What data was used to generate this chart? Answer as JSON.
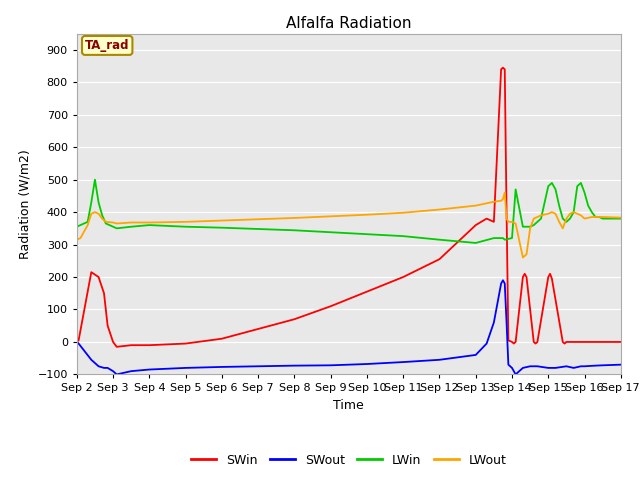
{
  "title": "Alfalfa Radiation",
  "xlabel": "Time",
  "ylabel": "Radiation (W/m2)",
  "ylim": [
    -100,
    950
  ],
  "yticks": [
    -100,
    0,
    100,
    200,
    300,
    400,
    500,
    600,
    700,
    800,
    900
  ],
  "bg_color": "#e8e8e8",
  "annotation_text": "TA_rad",
  "annotation_bg": "#ffffcc",
  "annotation_border": "#aa8800",
  "annotation_text_color": "#8b0000",
  "series": {
    "SWin": {
      "color": "#ff0000",
      "x": [
        2.0,
        2.05,
        2.4,
        2.6,
        2.75,
        2.85,
        3.0,
        3.1,
        3.5,
        4.0,
        5.0,
        6.0,
        7.0,
        8.0,
        9.0,
        10.0,
        11.0,
        12.0,
        13.0,
        13.3,
        13.5,
        13.7,
        13.75,
        13.8,
        13.85,
        13.9,
        14.0,
        14.05,
        14.1,
        14.3,
        14.35,
        14.4,
        14.6,
        14.65,
        14.7,
        15.0,
        15.05,
        15.1,
        15.4,
        15.45,
        15.5,
        15.9,
        16.5,
        17.0
      ],
      "y": [
        0,
        5,
        215,
        200,
        150,
        50,
        0,
        -15,
        -10,
        -10,
        -5,
        10,
        40,
        70,
        110,
        155,
        200,
        255,
        360,
        380,
        370,
        840,
        845,
        840,
        400,
        5,
        0,
        -5,
        0,
        200,
        210,
        200,
        0,
        -5,
        0,
        200,
        210,
        195,
        0,
        -5,
        0,
        0,
        0,
        0
      ]
    },
    "SWout": {
      "color": "#0000ff",
      "x": [
        2.0,
        2.05,
        2.4,
        2.6,
        2.75,
        2.85,
        3.0,
        3.1,
        3.5,
        4.0,
        5.0,
        6.0,
        7.0,
        8.0,
        9.0,
        10.0,
        11.0,
        12.0,
        13.0,
        13.3,
        13.5,
        13.7,
        13.75,
        13.8,
        13.85,
        13.9,
        14.0,
        14.1,
        14.3,
        14.5,
        14.7,
        15.0,
        15.2,
        15.5,
        15.7,
        15.9,
        16.0,
        16.3,
        16.5,
        17.0
      ],
      "y": [
        0,
        -5,
        -55,
        -75,
        -80,
        -80,
        -90,
        -100,
        -90,
        -85,
        -80,
        -77,
        -75,
        -73,
        -72,
        -68,
        -62,
        -55,
        -40,
        -5,
        60,
        180,
        190,
        180,
        60,
        -70,
        -80,
        -100,
        -80,
        -75,
        -75,
        -80,
        -80,
        -75,
        -80,
        -75,
        -75,
        -73,
        -72,
        -70
      ]
    },
    "LWin": {
      "color": "#00cc00",
      "x": [
        2.0,
        2.1,
        2.3,
        2.4,
        2.5,
        2.6,
        2.7,
        2.8,
        3.0,
        3.1,
        3.5,
        4.0,
        5.0,
        6.0,
        7.0,
        8.0,
        9.0,
        10.0,
        11.0,
        12.0,
        13.0,
        13.5,
        13.7,
        13.75,
        13.8,
        14.0,
        14.1,
        14.3,
        14.4,
        14.5,
        14.6,
        14.7,
        14.8,
        15.0,
        15.1,
        15.2,
        15.3,
        15.4,
        15.5,
        15.6,
        15.7,
        15.8,
        15.9,
        16.0,
        16.1,
        16.2,
        16.3,
        16.4,
        16.5,
        16.7,
        17.0
      ],
      "y": [
        355,
        360,
        370,
        430,
        500,
        430,
        390,
        365,
        355,
        350,
        355,
        360,
        355,
        352,
        348,
        344,
        338,
        332,
        326,
        315,
        305,
        320,
        320,
        320,
        315,
        320,
        470,
        355,
        355,
        355,
        360,
        370,
        380,
        480,
        490,
        470,
        420,
        380,
        370,
        380,
        400,
        480,
        490,
        460,
        420,
        400,
        385,
        385,
        380,
        380,
        380
      ]
    },
    "LWout": {
      "color": "#ffa500",
      "x": [
        2.0,
        2.1,
        2.3,
        2.4,
        2.5,
        2.6,
        2.7,
        2.8,
        3.0,
        3.1,
        3.5,
        4.0,
        5.0,
        6.0,
        7.0,
        8.0,
        9.0,
        10.0,
        11.0,
        12.0,
        13.0,
        13.5,
        13.7,
        13.75,
        13.8,
        13.85,
        13.9,
        14.0,
        14.1,
        14.3,
        14.4,
        14.5,
        14.6,
        14.7,
        14.8,
        15.0,
        15.1,
        15.2,
        15.3,
        15.4,
        15.5,
        15.6,
        15.7,
        15.8,
        15.9,
        16.0,
        16.2,
        16.5,
        17.0
      ],
      "y": [
        315,
        320,
        360,
        395,
        400,
        395,
        380,
        370,
        368,
        365,
        368,
        368,
        370,
        374,
        378,
        382,
        387,
        392,
        398,
        408,
        420,
        432,
        435,
        440,
        460,
        380,
        370,
        370,
        365,
        260,
        270,
        350,
        380,
        385,
        390,
        395,
        400,
        395,
        370,
        350,
        380,
        395,
        400,
        395,
        390,
        380,
        385,
        385,
        383
      ]
    }
  },
  "xtick_positions": [
    2,
    3,
    4,
    5,
    6,
    7,
    8,
    9,
    10,
    11,
    12,
    13,
    14,
    15,
    16,
    17
  ],
  "xtick_labels": [
    "Sep 2",
    "Sep 3",
    "Sep 4",
    "Sep 5",
    "Sep 6",
    "Sep 7",
    "Sep 8",
    "Sep 9",
    "Sep 10",
    "Sep 11",
    "Sep 12",
    "Sep 13",
    "Sep 14",
    "Sep 15",
    "Sep 16",
    "Sep 17"
  ],
  "legend_entries": [
    "SWin",
    "SWout",
    "LWin",
    "LWout"
  ],
  "legend_colors": [
    "#ff0000",
    "#0000ff",
    "#00cc00",
    "#ffa500"
  ],
  "figsize": [
    6.4,
    4.8
  ],
  "dpi": 100
}
